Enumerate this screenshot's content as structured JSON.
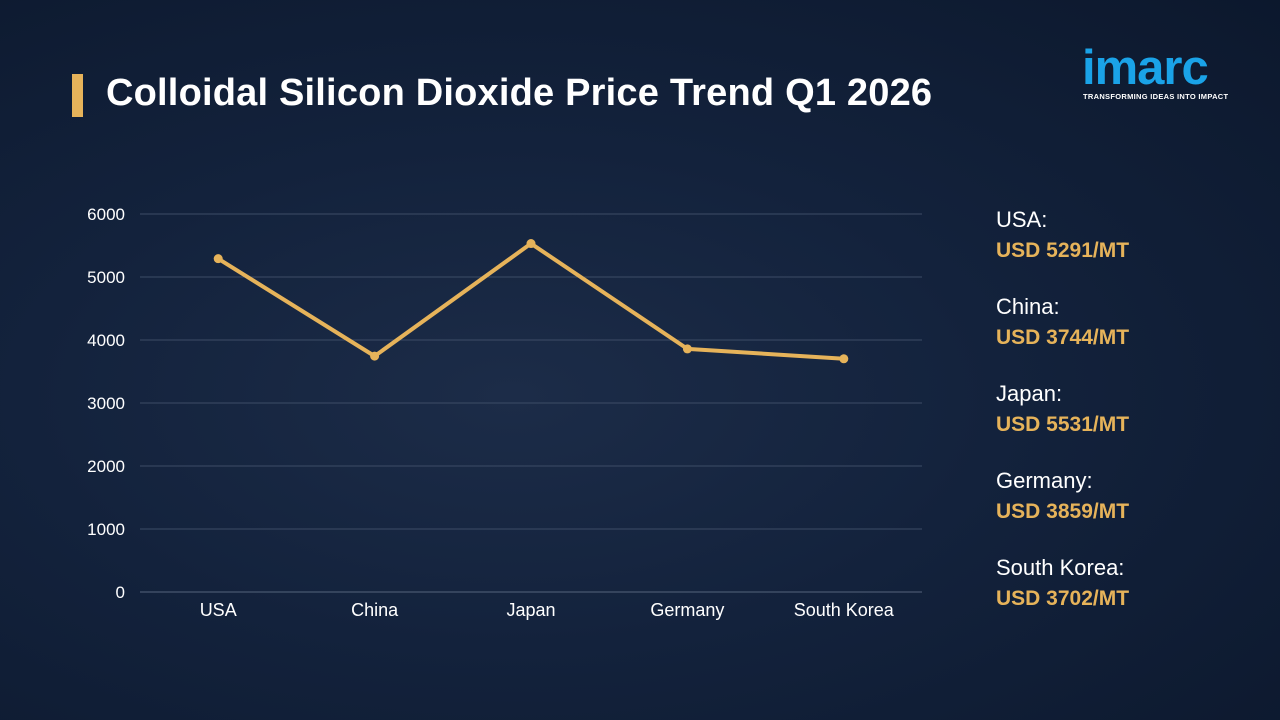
{
  "page": {
    "title": "Colloidal Silicon Dioxide Price Trend Q1 2026",
    "logo_text": "imarc",
    "logo_tagline": "TRANSFORMING IDEAS INTO IMPACT"
  },
  "colors": {
    "accent": "#e6b35a",
    "logo": "#1aa3e8",
    "background": "#0f1c33",
    "gridline": "#3d4c66"
  },
  "chart_data": {
    "type": "line",
    "title": "Colloidal Silicon Dioxide Price Trend Q1 2026",
    "categories": [
      "USA",
      "China",
      "Japan",
      "Germany",
      "South Korea"
    ],
    "series": [
      {
        "values": [
          5291,
          3744,
          5531,
          3859,
          3702
        ]
      }
    ],
    "ylim": [
      0,
      6000
    ],
    "yticks": [
      0,
      1000,
      2000,
      3000,
      4000,
      5000,
      6000
    ],
    "grid": true,
    "xlabel": "",
    "ylabel": ""
  },
  "legend": [
    {
      "country": "USA:",
      "price": "USD 5291/MT"
    },
    {
      "country": "China:",
      "price": "USD 3744/MT"
    },
    {
      "country": "Japan:",
      "price": "USD 5531/MT"
    },
    {
      "country": "Germany:",
      "price": "USD 3859/MT"
    },
    {
      "country": "South Korea:",
      "price": "USD 3702/MT"
    }
  ]
}
